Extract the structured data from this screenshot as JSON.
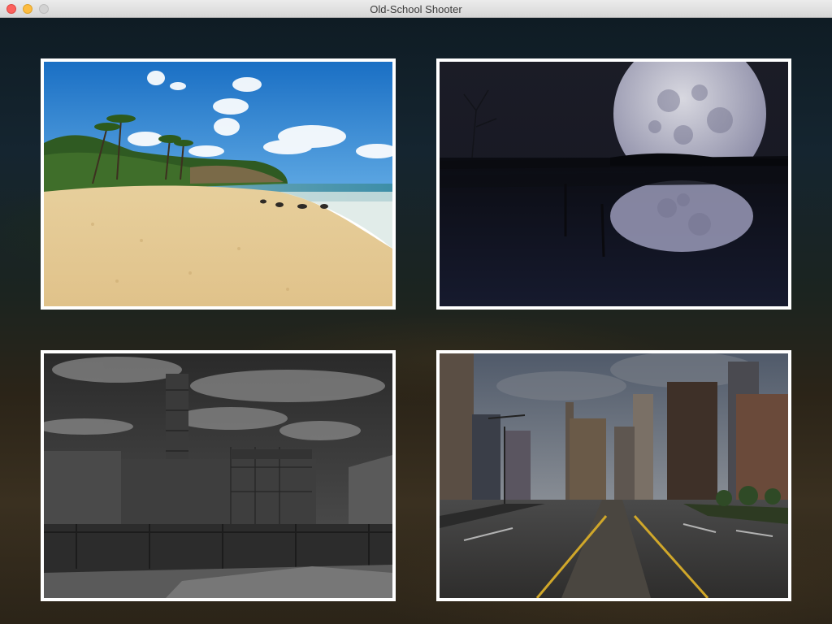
{
  "window": {
    "title": "Old-School Shooter"
  },
  "tiles": [
    {
      "scene": "beach",
      "selected": false
    },
    {
      "scene": "moon-night",
      "selected": false
    },
    {
      "scene": "chernobyl",
      "selected": false
    },
    {
      "scene": "city-street",
      "selected": false
    }
  ],
  "colors": {
    "titlebar": "#e3e3e3",
    "close": "#fc615d",
    "minimize": "#fdbc40",
    "zoom": "#d2d2d2",
    "tile_border": "#ffffff",
    "background": "#0c1016"
  },
  "icons": [
    "close-window-icon",
    "minimize-window-icon",
    "zoom-window-icon"
  ]
}
